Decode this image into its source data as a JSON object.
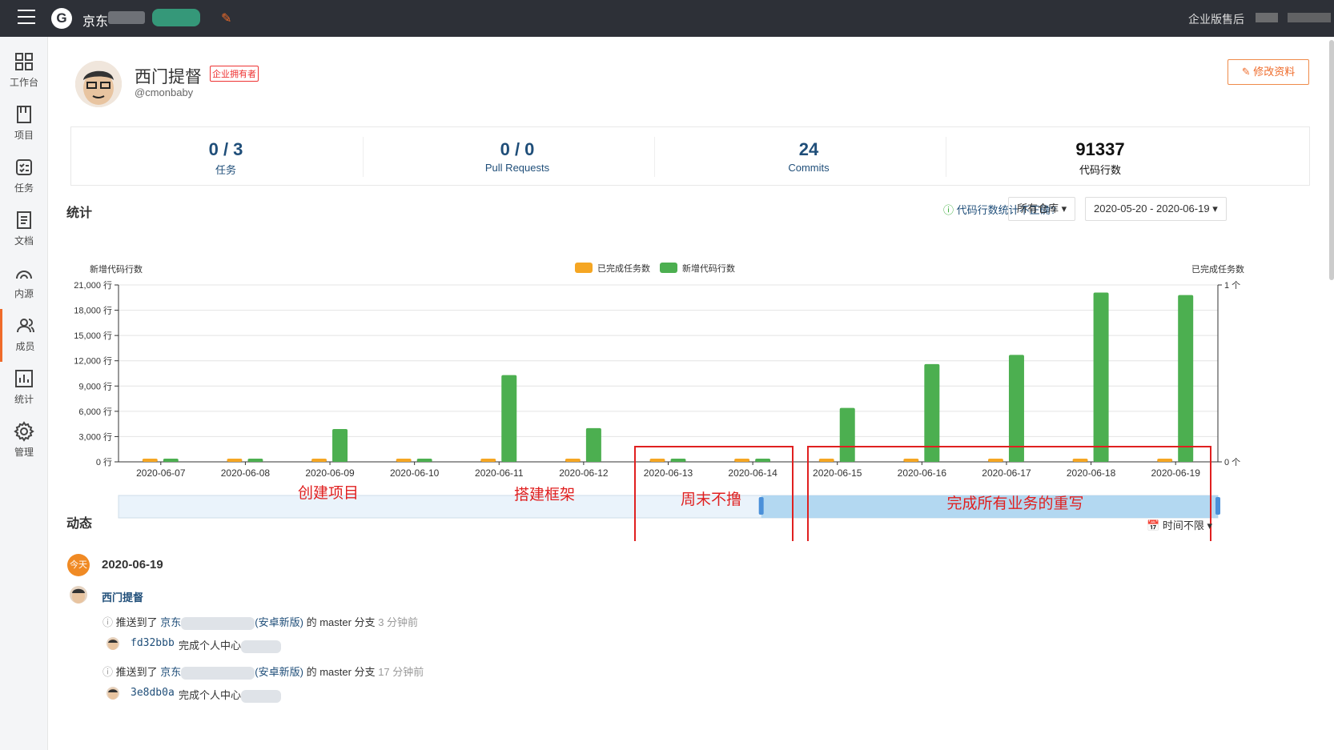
{
  "topbar": {
    "breadcrumb": "京东",
    "org_label": "企业版售后"
  },
  "sidebar": {
    "items": [
      {
        "label": "工作台",
        "icon": "dashboard-icon"
      },
      {
        "label": "项目",
        "icon": "book-icon"
      },
      {
        "label": "任务",
        "icon": "task-list-icon"
      },
      {
        "label": "文档",
        "icon": "document-icon"
      },
      {
        "label": "内源",
        "icon": "inner-source-icon"
      },
      {
        "label": "成员",
        "icon": "members-icon"
      },
      {
        "label": "统计",
        "icon": "statistics-icon"
      },
      {
        "label": "管理",
        "icon": "gear-icon"
      }
    ],
    "active": "成员",
    "accent": "#ef6b2a"
  },
  "profile": {
    "name": "西门提督",
    "badge": "企业拥有者",
    "handle": "@cmonbaby",
    "edit_label": "修改资料"
  },
  "stats": [
    {
      "value": "0 / 3",
      "label": "任务"
    },
    {
      "value": "0 / 0",
      "label": "Pull Requests"
    },
    {
      "value": "24",
      "label": "Commits"
    },
    {
      "value": "91337",
      "label": "代码行数"
    }
  ],
  "stats_section": {
    "title": "统计",
    "help": "代码行数统计不正确?",
    "repo_filter": "所有仓库",
    "date_range": "2020-05-20 - 2020-06-19"
  },
  "chart_data": {
    "type": "bar",
    "ylabel_left": "新增代码行数",
    "ylabel_right": "已完成任务数",
    "legend": [
      "已完成任务数",
      "新增代码行数"
    ],
    "legend_placement": "top-center",
    "colors": {
      "tasks": "#f5a623",
      "lines": "#4caf50"
    },
    "categories": [
      "2020-06-07",
      "2020-06-08",
      "2020-06-09",
      "2020-06-10",
      "2020-06-11",
      "2020-06-12",
      "2020-06-13",
      "2020-06-14",
      "2020-06-15",
      "2020-06-16",
      "2020-06-17",
      "2020-06-18",
      "2020-06-19"
    ],
    "series": [
      {
        "name": "已完成任务数",
        "values": [
          0,
          0,
          0,
          0,
          0,
          0,
          0,
          0,
          0,
          0,
          0,
          0,
          0
        ]
      },
      {
        "name": "新增代码行数",
        "values": [
          0,
          0,
          3900,
          0,
          10300,
          4000,
          0,
          0,
          6400,
          11600,
          12700,
          20100,
          19800
        ]
      }
    ],
    "ylim_left": [
      0,
      21000
    ],
    "yticks_left": [
      "0 行",
      "3,000 行",
      "6,000 行",
      "9,000 行",
      "12,000 行",
      "15,000 行",
      "18,000 行",
      "21,000 行"
    ],
    "ylim_right": [
      0,
      1
    ],
    "yticks_right": [
      "0 个",
      "1 个"
    ],
    "grid": true
  },
  "annotations": [
    "创建项目",
    "搭建框架",
    "周末不撸",
    "完成所有业务的重写"
  ],
  "activity": {
    "title": "动态",
    "time_filter": "时间不限",
    "today_badge": "今天",
    "date": "2020-06-19",
    "user": "西门提督",
    "events": [
      {
        "action": "推送到了",
        "repo": "京东",
        "repo_suffix": "(安卓新版)",
        "branch_text": "的 master 分支",
        "time": "3 分钟前",
        "commit": "fd32bbb",
        "message": "完成个人中心"
      },
      {
        "action": "推送到了",
        "repo": "京东",
        "repo_suffix": "(安卓新版)",
        "branch_text": "的 master 分支",
        "time": "17 分钟前",
        "commit": "3e8db0a",
        "message": "完成个人中心"
      }
    ]
  }
}
